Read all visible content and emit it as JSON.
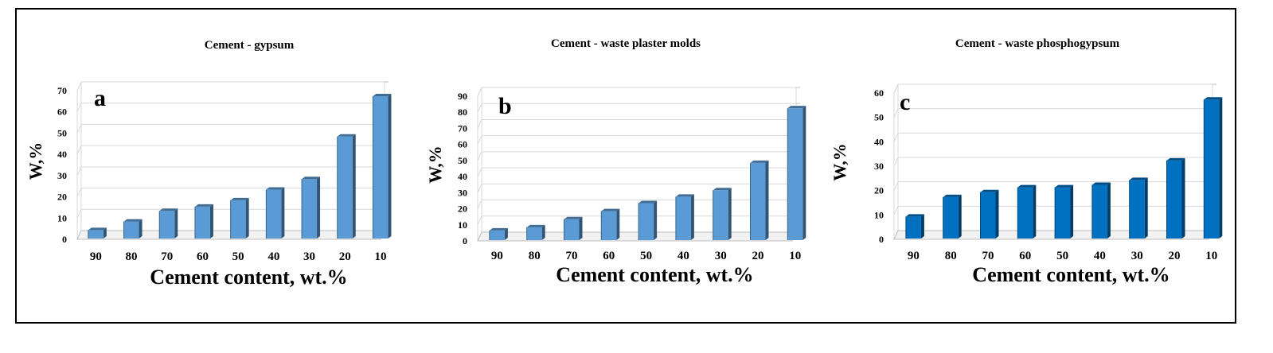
{
  "chart_data": [
    {
      "type": "bar",
      "panel_label": "a",
      "title": "Cement - gypsum",
      "xlabel": "Cement content, wt.%",
      "ylabel": "W,%",
      "categories": [
        "90",
        "80",
        "70",
        "60",
        "50",
        "40",
        "30",
        "20",
        "10"
      ],
      "values": [
        4,
        8,
        13,
        15,
        18,
        23,
        28,
        48,
        67
      ],
      "ylim": [
        0,
        70
      ],
      "yticks": [
        0,
        10,
        20,
        30,
        40,
        50,
        60,
        70
      ],
      "color": "#5b9bd5",
      "grid": true
    },
    {
      "type": "bar",
      "panel_label": "b",
      "title": "Cement - waste plaster molds",
      "xlabel": "Cement content, wt.%",
      "ylabel": "W,%",
      "categories": [
        "90",
        "80",
        "70",
        "60",
        "50",
        "40",
        "30",
        "20",
        "10"
      ],
      "values": [
        6,
        8,
        13,
        18,
        23,
        27,
        31,
        48,
        82
      ],
      "ylim": [
        0,
        90
      ],
      "yticks": [
        0,
        10,
        20,
        30,
        40,
        50,
        60,
        70,
        80,
        90
      ],
      "color": "#5b9bd5",
      "grid": true
    },
    {
      "type": "bar",
      "panel_label": "c",
      "title": "Cement - waste phosphogypsum",
      "xlabel": "Cement content, wt.%",
      "ylabel": "W,%",
      "categories": [
        "90",
        "80",
        "70",
        "60",
        "50",
        "40",
        "30",
        "20",
        "10"
      ],
      "values": [
        9,
        17,
        19,
        21,
        21,
        22,
        24,
        32,
        57
      ],
      "ylim": [
        0,
        60
      ],
      "yticks": [
        0,
        10,
        20,
        30,
        40,
        50,
        60
      ],
      "color": "#0070c0",
      "grid": true
    }
  ]
}
